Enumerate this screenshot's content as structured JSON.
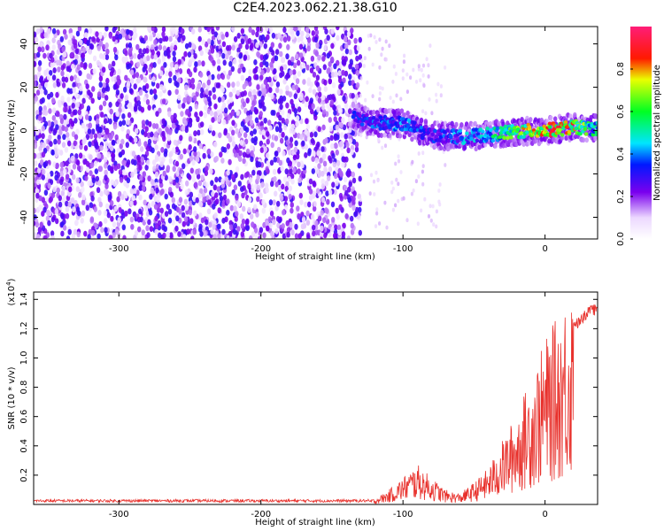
{
  "title": "C2E4.2023.062.21.38.G10",
  "chart_data": [
    {
      "type": "heatmap",
      "xlabel": "Height of straight line (km)",
      "ylabel": "Frequency (Hz)",
      "xlim": [
        -360,
        37
      ],
      "ylim": [
        -50,
        48
      ],
      "xticks": [
        -300,
        -200,
        -100,
        0
      ],
      "yticks": [
        -40,
        -20,
        0,
        20,
        40
      ],
      "colorbar": {
        "label": "Normalized spectral amplitude",
        "range": [
          0,
          1
        ],
        "ticks": [
          "0.0",
          "0.2",
          "0.4",
          "0.6",
          "0.8"
        ]
      },
      "noise_floor": {
        "x_range": [
          -360,
          -130
        ],
        "f_range": [
          -50,
          48
        ],
        "amplitude": [
          0.05,
          0.3
        ]
      },
      "signal_ridge": {
        "x": [
          -135,
          -120,
          -100,
          -80,
          -60,
          -40,
          -20,
          0,
          20,
          37
        ],
        "freq_hz": [
          6,
          4,
          3,
          -2,
          -3,
          -2,
          -0.5,
          0,
          1.5,
          1
        ],
        "amplitude": [
          0.35,
          0.4,
          0.45,
          0.35,
          0.45,
          0.5,
          0.75,
          0.9,
          0.85,
          0.55
        ]
      },
      "grid": false
    },
    {
      "type": "line",
      "xlabel": "Height of straight line (km)",
      "ylabel": "SNR (10 * v/v)",
      "yscale_label": "(x10",
      "yscale_exp": "4",
      "xlim": [
        -360,
        37
      ],
      "ylim": [
        0,
        1.45
      ],
      "xticks": [
        -300,
        -200,
        -100,
        0
      ],
      "yticks": [
        0.2,
        0.4,
        0.6,
        0.8,
        1.0,
        1.2,
        1.4
      ],
      "ytick_labels": [
        "0.2",
        "0.4",
        "0.6",
        "0.8",
        "1.0",
        "1.2",
        "1.4"
      ],
      "series": [
        {
          "color": "#e8312c",
          "x": [
            -360,
            -300,
            -250,
            -200,
            -150,
            -120,
            -110,
            -100,
            -90,
            -80,
            -70,
            -60,
            -50,
            -40,
            -30,
            -20,
            -10,
            0,
            10,
            20,
            30,
            37
          ],
          "y": [
            0.02,
            0.02,
            0.02,
            0.02,
            0.02,
            0.03,
            0.08,
            0.15,
            0.22,
            0.15,
            0.08,
            0.06,
            0.12,
            0.2,
            0.35,
            0.5,
            0.7,
            0.9,
            1.05,
            1.25,
            1.35,
            1.38
          ]
        }
      ],
      "grid": false
    }
  ]
}
